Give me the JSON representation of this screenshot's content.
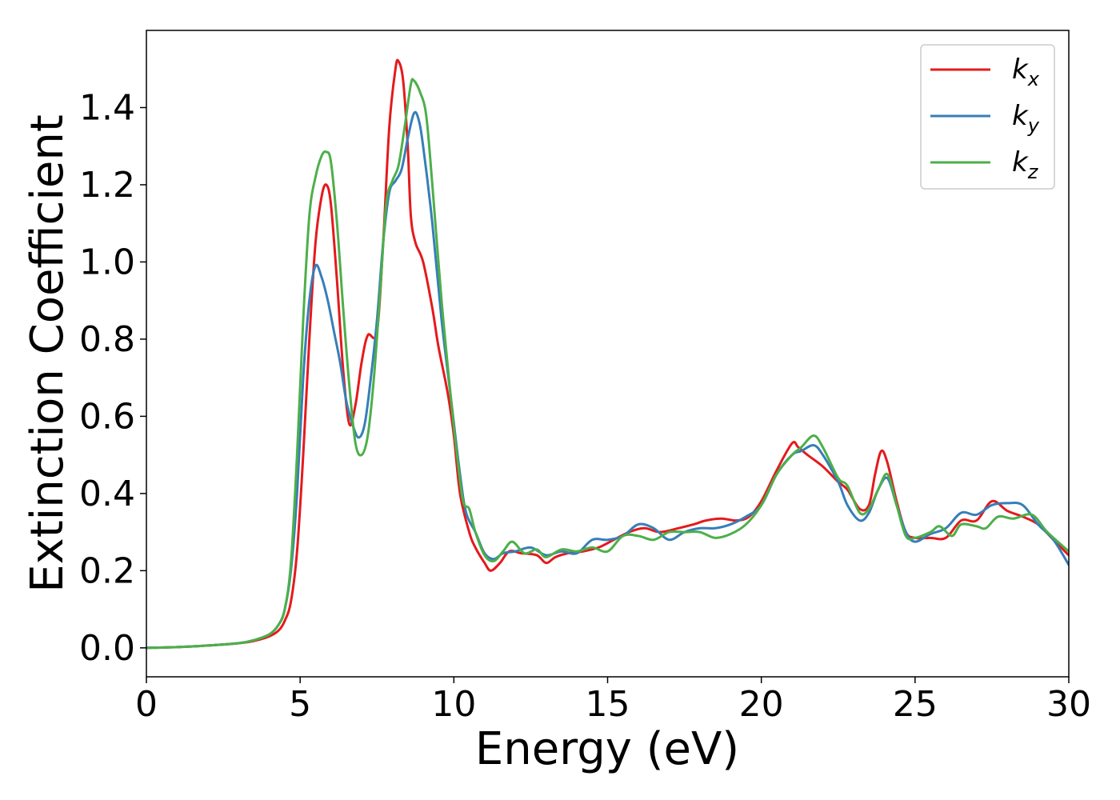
{
  "chart_data": {
    "type": "line",
    "xlabel": "Energy (eV)",
    "ylabel": "Extinction Coefficient",
    "xlim": [
      0,
      30
    ],
    "ylim": [
      -0.075,
      1.6
    ],
    "xticks": [
      "0",
      "5",
      "10",
      "15",
      "20",
      "25",
      "30"
    ],
    "yticks": [
      "0.0",
      "0.2",
      "0.4",
      "0.6",
      "0.8",
      "1.0",
      "1.2",
      "1.4"
    ],
    "grid": false,
    "legend_position": "top-right",
    "series": [
      {
        "name": "k_x",
        "label_main": "k",
        "label_sub": "x",
        "color": "#e41a1c",
        "points": [
          [
            0,
            0
          ],
          [
            1,
            0.002
          ],
          [
            2,
            0.006
          ],
          [
            3,
            0.012
          ],
          [
            3.5,
            0.018
          ],
          [
            4,
            0.03
          ],
          [
            4.3,
            0.045
          ],
          [
            4.5,
            0.07
          ],
          [
            4.7,
            0.12
          ],
          [
            4.9,
            0.25
          ],
          [
            5.1,
            0.5
          ],
          [
            5.3,
            0.8
          ],
          [
            5.5,
            1.05
          ],
          [
            5.7,
            1.17
          ],
          [
            5.85,
            1.2
          ],
          [
            6.0,
            1.15
          ],
          [
            6.2,
            0.95
          ],
          [
            6.4,
            0.72
          ],
          [
            6.6,
            0.58
          ],
          [
            6.8,
            0.63
          ],
          [
            7.0,
            0.74
          ],
          [
            7.2,
            0.81
          ],
          [
            7.5,
            0.82
          ],
          [
            7.7,
            1.05
          ],
          [
            7.9,
            1.35
          ],
          [
            8.1,
            1.5
          ],
          [
            8.2,
            1.52
          ],
          [
            8.35,
            1.47
          ],
          [
            8.5,
            1.3
          ],
          [
            8.6,
            1.12
          ],
          [
            8.75,
            1.05
          ],
          [
            9.0,
            1.0
          ],
          [
            9.3,
            0.88
          ],
          [
            9.5,
            0.78
          ],
          [
            9.8,
            0.66
          ],
          [
            10.0,
            0.55
          ],
          [
            10.2,
            0.4
          ],
          [
            10.5,
            0.3
          ],
          [
            10.7,
            0.26
          ],
          [
            11.0,
            0.22
          ],
          [
            11.2,
            0.2
          ],
          [
            11.5,
            0.22
          ],
          [
            11.8,
            0.25
          ],
          [
            12.2,
            0.245
          ],
          [
            12.7,
            0.24
          ],
          [
            13.0,
            0.22
          ],
          [
            13.3,
            0.235
          ],
          [
            13.7,
            0.245
          ],
          [
            14.2,
            0.25
          ],
          [
            14.7,
            0.26
          ],
          [
            15.2,
            0.28
          ],
          [
            15.7,
            0.3
          ],
          [
            16.2,
            0.31
          ],
          [
            16.7,
            0.3
          ],
          [
            17.3,
            0.31
          ],
          [
            17.8,
            0.32
          ],
          [
            18.2,
            0.33
          ],
          [
            18.7,
            0.335
          ],
          [
            19.2,
            0.33
          ],
          [
            19.6,
            0.34
          ],
          [
            20.0,
            0.38
          ],
          [
            20.5,
            0.46
          ],
          [
            21.0,
            0.53
          ],
          [
            21.2,
            0.52
          ],
          [
            21.5,
            0.5
          ],
          [
            22.0,
            0.47
          ],
          [
            22.5,
            0.43
          ],
          [
            22.8,
            0.41
          ],
          [
            23.2,
            0.36
          ],
          [
            23.5,
            0.37
          ],
          [
            23.7,
            0.45
          ],
          [
            23.9,
            0.51
          ],
          [
            24.1,
            0.48
          ],
          [
            24.4,
            0.38
          ],
          [
            24.7,
            0.3
          ],
          [
            25.0,
            0.285
          ],
          [
            25.5,
            0.285
          ],
          [
            26.0,
            0.285
          ],
          [
            26.5,
            0.33
          ],
          [
            27.0,
            0.33
          ],
          [
            27.5,
            0.38
          ],
          [
            28.0,
            0.355
          ],
          [
            28.5,
            0.34
          ],
          [
            29.0,
            0.32
          ],
          [
            29.5,
            0.28
          ],
          [
            30.0,
            0.24
          ]
        ]
      },
      {
        "name": "k_y",
        "label_main": "k",
        "label_sub": "y",
        "color": "#377eb8",
        "points": [
          [
            0,
            0
          ],
          [
            1,
            0.002
          ],
          [
            2,
            0.006
          ],
          [
            3,
            0.012
          ],
          [
            3.5,
            0.02
          ],
          [
            4,
            0.035
          ],
          [
            4.3,
            0.06
          ],
          [
            4.5,
            0.1
          ],
          [
            4.7,
            0.2
          ],
          [
            4.9,
            0.4
          ],
          [
            5.1,
            0.7
          ],
          [
            5.3,
            0.9
          ],
          [
            5.5,
            0.99
          ],
          [
            5.7,
            0.96
          ],
          [
            5.9,
            0.9
          ],
          [
            6.1,
            0.82
          ],
          [
            6.3,
            0.74
          ],
          [
            6.5,
            0.64
          ],
          [
            6.7,
            0.58
          ],
          [
            6.9,
            0.545
          ],
          [
            7.1,
            0.58
          ],
          [
            7.3,
            0.7
          ],
          [
            7.5,
            0.85
          ],
          [
            7.7,
            1.05
          ],
          [
            7.9,
            1.18
          ],
          [
            8.1,
            1.21
          ],
          [
            8.3,
            1.24
          ],
          [
            8.5,
            1.32
          ],
          [
            8.7,
            1.385
          ],
          [
            8.85,
            1.37
          ],
          [
            9.0,
            1.3
          ],
          [
            9.3,
            1.1
          ],
          [
            9.6,
            0.85
          ],
          [
            9.9,
            0.65
          ],
          [
            10.2,
            0.45
          ],
          [
            10.4,
            0.35
          ],
          [
            10.7,
            0.3
          ],
          [
            11.0,
            0.245
          ],
          [
            11.3,
            0.23
          ],
          [
            11.6,
            0.245
          ],
          [
            12.0,
            0.25
          ],
          [
            12.5,
            0.26
          ],
          [
            13.0,
            0.24
          ],
          [
            13.5,
            0.25
          ],
          [
            14.0,
            0.245
          ],
          [
            14.5,
            0.28
          ],
          [
            15.0,
            0.28
          ],
          [
            15.5,
            0.29
          ],
          [
            16.0,
            0.32
          ],
          [
            16.5,
            0.31
          ],
          [
            17.0,
            0.28
          ],
          [
            17.5,
            0.3
          ],
          [
            18.0,
            0.31
          ],
          [
            18.5,
            0.31
          ],
          [
            19.0,
            0.32
          ],
          [
            19.5,
            0.34
          ],
          [
            20.0,
            0.37
          ],
          [
            20.5,
            0.45
          ],
          [
            21.0,
            0.5
          ],
          [
            21.3,
            0.51
          ],
          [
            21.7,
            0.525
          ],
          [
            22.0,
            0.5
          ],
          [
            22.5,
            0.43
          ],
          [
            22.8,
            0.37
          ],
          [
            23.2,
            0.33
          ],
          [
            23.5,
            0.35
          ],
          [
            23.8,
            0.41
          ],
          [
            24.1,
            0.44
          ],
          [
            24.4,
            0.37
          ],
          [
            24.7,
            0.3
          ],
          [
            25.0,
            0.275
          ],
          [
            25.5,
            0.295
          ],
          [
            26.0,
            0.31
          ],
          [
            26.5,
            0.35
          ],
          [
            27.0,
            0.345
          ],
          [
            27.5,
            0.37
          ],
          [
            28.0,
            0.375
          ],
          [
            28.5,
            0.37
          ],
          [
            29.0,
            0.32
          ],
          [
            29.5,
            0.28
          ],
          [
            30.0,
            0.215
          ]
        ]
      },
      {
        "name": "k_z",
        "label_main": "k",
        "label_sub": "z",
        "color": "#4daf4a",
        "points": [
          [
            0,
            0
          ],
          [
            1,
            0.002
          ],
          [
            2,
            0.006
          ],
          [
            3,
            0.012
          ],
          [
            3.5,
            0.02
          ],
          [
            4,
            0.035
          ],
          [
            4.3,
            0.06
          ],
          [
            4.5,
            0.1
          ],
          [
            4.7,
            0.22
          ],
          [
            4.9,
            0.5
          ],
          [
            5.1,
            0.85
          ],
          [
            5.3,
            1.12
          ],
          [
            5.5,
            1.22
          ],
          [
            5.7,
            1.275
          ],
          [
            5.85,
            1.285
          ],
          [
            6.0,
            1.26
          ],
          [
            6.2,
            1.1
          ],
          [
            6.4,
            0.88
          ],
          [
            6.6,
            0.68
          ],
          [
            6.8,
            0.53
          ],
          [
            7.0,
            0.5
          ],
          [
            7.2,
            0.55
          ],
          [
            7.4,
            0.7
          ],
          [
            7.6,
            0.92
          ],
          [
            7.8,
            1.15
          ],
          [
            8.0,
            1.21
          ],
          [
            8.2,
            1.25
          ],
          [
            8.4,
            1.35
          ],
          [
            8.6,
            1.46
          ],
          [
            8.7,
            1.47
          ],
          [
            8.9,
            1.44
          ],
          [
            9.1,
            1.38
          ],
          [
            9.3,
            1.2
          ],
          [
            9.6,
            0.9
          ],
          [
            9.9,
            0.65
          ],
          [
            10.1,
            0.5
          ],
          [
            10.3,
            0.38
          ],
          [
            10.5,
            0.36
          ],
          [
            10.7,
            0.3
          ],
          [
            11.0,
            0.24
          ],
          [
            11.3,
            0.225
          ],
          [
            11.6,
            0.25
          ],
          [
            11.9,
            0.275
          ],
          [
            12.3,
            0.245
          ],
          [
            12.7,
            0.255
          ],
          [
            13.0,
            0.235
          ],
          [
            13.5,
            0.255
          ],
          [
            14.0,
            0.25
          ],
          [
            14.5,
            0.26
          ],
          [
            15.0,
            0.25
          ],
          [
            15.5,
            0.29
          ],
          [
            16.0,
            0.29
          ],
          [
            16.5,
            0.28
          ],
          [
            17.0,
            0.3
          ],
          [
            17.5,
            0.3
          ],
          [
            18.0,
            0.3
          ],
          [
            18.5,
            0.285
          ],
          [
            19.0,
            0.295
          ],
          [
            19.5,
            0.32
          ],
          [
            20.0,
            0.37
          ],
          [
            20.5,
            0.45
          ],
          [
            21.0,
            0.5
          ],
          [
            21.3,
            0.52
          ],
          [
            21.7,
            0.55
          ],
          [
            22.0,
            0.52
          ],
          [
            22.5,
            0.44
          ],
          [
            22.8,
            0.42
          ],
          [
            23.2,
            0.35
          ],
          [
            23.5,
            0.36
          ],
          [
            23.8,
            0.41
          ],
          [
            24.1,
            0.45
          ],
          [
            24.4,
            0.37
          ],
          [
            24.7,
            0.29
          ],
          [
            25.0,
            0.285
          ],
          [
            25.5,
            0.3
          ],
          [
            25.8,
            0.315
          ],
          [
            26.2,
            0.29
          ],
          [
            26.5,
            0.32
          ],
          [
            27.0,
            0.315
          ],
          [
            27.3,
            0.31
          ],
          [
            27.7,
            0.34
          ],
          [
            28.2,
            0.335
          ],
          [
            28.8,
            0.345
          ],
          [
            29.3,
            0.3
          ],
          [
            30.0,
            0.25
          ]
        ]
      }
    ]
  }
}
